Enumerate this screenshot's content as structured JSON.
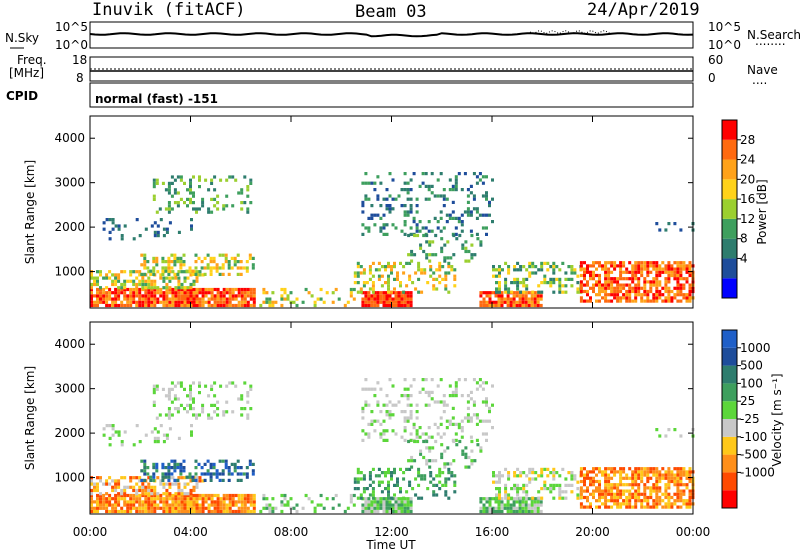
{
  "header": {
    "station": "Inuvik (fitACF)",
    "beam": "Beam 03",
    "date": "24/Apr/2019"
  },
  "top_panel": {
    "nsky_label": "N.Sky",
    "nsearch_label": "N.Search",
    "nsearch_dots": "........",
    "tick_high": "10^5",
    "tick_low": "10^0",
    "freq_label": "Freq.",
    "freq_unit": "[MHz]",
    "freq_tick_high": "18",
    "freq_tick_low": "8",
    "nave_label": "Nave",
    "nave_dots": "....",
    "nave_tick_high": "60",
    "nave_tick_low": "0",
    "cpid_label": "CPID",
    "cpid_value": "normal (fast) -151"
  },
  "colors": {
    "power": [
      "#0000ff",
      "#1e4d9b",
      "#2e7d6e",
      "#3e9f5e",
      "#9bcf2f",
      "#ffd21a",
      "#ffa21a",
      "#ff6a10",
      "#ff0000"
    ],
    "velocity": [
      "#ff0000",
      "#ff4a00",
      "#ff8f1a",
      "#ffc81a",
      "#c8c8c8",
      "#5cd63a",
      "#3e9f5e",
      "#2e7d6e",
      "#1e4d9b",
      "#1f5fc8"
    ]
  },
  "chart_data": [
    {
      "type": "heatmap",
      "name": "power",
      "ylabel": "Slant Range [km]",
      "xlabel": "",
      "x_range_hours": [
        0,
        24
      ],
      "ylim": [
        180,
        4500
      ],
      "y_ticks": [
        1000,
        2000,
        3000,
        4000
      ],
      "colorbar": {
        "label": "Power [dB]",
        "ticks": [
          "28",
          "24",
          "20",
          "16",
          "12",
          "8",
          "4"
        ],
        "range": [
          0,
          30
        ]
      }
    },
    {
      "type": "heatmap",
      "name": "velocity",
      "ylabel": "Slant Range [km]",
      "xlabel": "Time UT",
      "x_ticks": [
        "00:00",
        "04:00",
        "08:00",
        "12:00",
        "16:00",
        "20:00",
        "00:00"
      ],
      "x_range_hours": [
        0,
        24
      ],
      "ylim": [
        180,
        4500
      ],
      "y_ticks": [
        1000,
        2000,
        3000,
        4000
      ],
      "colorbar": {
        "label": "Velocity [m s⁻¹]",
        "ticks": [
          "1000",
          "500",
          "100",
          "25",
          "-25",
          "-100",
          "-500",
          "-1000"
        ],
        "range": [
          -1000,
          1000
        ]
      }
    }
  ]
}
